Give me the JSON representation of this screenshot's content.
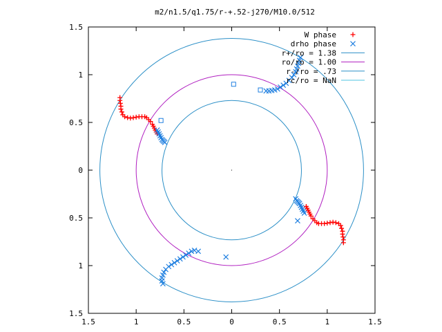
{
  "chart_data": {
    "type": "scatter",
    "title": "m2/n1.5/q1.75/r-+.52-j270/M10.0/512",
    "xlim": [
      -1.5,
      1.5
    ],
    "ylim": [
      -1.5,
      1.5
    ],
    "x_ticks": [
      {
        "v": -1.5,
        "label": "1.5"
      },
      {
        "v": -1,
        "label": "1"
      },
      {
        "v": -0.5,
        "label": "0.5"
      },
      {
        "v": 0,
        "label": "0"
      },
      {
        "v": 0.5,
        "label": "0.5"
      },
      {
        "v": 1,
        "label": "1"
      },
      {
        "v": 1.5,
        "label": "1.5"
      }
    ],
    "y_ticks": [
      {
        "v": 1.5,
        "label": "1.5"
      },
      {
        "v": 1,
        "label": "1"
      },
      {
        "v": 0.5,
        "label": "0.5"
      },
      {
        "v": 0,
        "label": "0"
      },
      {
        "v": -0.5,
        "label": "0.5"
      },
      {
        "v": -1,
        "label": "1"
      },
      {
        "v": -1.5,
        "label": "1.5"
      }
    ],
    "grid": false,
    "legend_position": "top-right",
    "circles": [
      {
        "name": "r+/ro = 1.38",
        "radius": 1.38,
        "color": "#2b8fc7"
      },
      {
        "name": "ro/ro = 1.00",
        "radius": 1.0,
        "color": "#b01ec0"
      },
      {
        "name": "r-/ro = .73",
        "radius": 0.73,
        "color": "#2b8fc7"
      },
      {
        "name": "rc/ro = NaN",
        "radius": null,
        "color": "#4fc6e2"
      }
    ],
    "series": [
      {
        "name": "W phase",
        "marker": "plus",
        "color": "#ff0000",
        "points": [
          [
            -1.17,
            0.76
          ],
          [
            -1.17,
            0.73
          ],
          [
            -1.165,
            0.7
          ],
          [
            -1.16,
            0.67
          ],
          [
            -1.16,
            0.64
          ],
          [
            -1.15,
            0.61
          ],
          [
            -1.14,
            0.58
          ],
          [
            -1.12,
            0.56
          ],
          [
            -1.09,
            0.55
          ],
          [
            -1.06,
            0.545
          ],
          [
            -1.03,
            0.55
          ],
          [
            -1.0,
            0.555
          ],
          [
            -0.97,
            0.56
          ],
          [
            -0.94,
            0.56
          ],
          [
            -0.91,
            0.56
          ],
          [
            -0.89,
            0.55
          ],
          [
            -0.87,
            0.53
          ],
          [
            -0.85,
            0.51
          ],
          [
            -0.83,
            0.48
          ],
          [
            -0.82,
            0.46
          ],
          [
            -0.81,
            0.44
          ],
          [
            -0.8,
            0.42
          ],
          [
            -0.79,
            0.4
          ],
          [
            -0.78,
            0.38
          ],
          [
            1.17,
            -0.76
          ],
          [
            1.17,
            -0.73
          ],
          [
            1.165,
            -0.7
          ],
          [
            1.16,
            -0.67
          ],
          [
            1.16,
            -0.64
          ],
          [
            1.15,
            -0.61
          ],
          [
            1.14,
            -0.58
          ],
          [
            1.12,
            -0.56
          ],
          [
            1.09,
            -0.55
          ],
          [
            1.06,
            -0.545
          ],
          [
            1.03,
            -0.55
          ],
          [
            1.0,
            -0.555
          ],
          [
            0.97,
            -0.56
          ],
          [
            0.94,
            -0.56
          ],
          [
            0.91,
            -0.56
          ],
          [
            0.89,
            -0.55
          ],
          [
            0.87,
            -0.53
          ],
          [
            0.85,
            -0.51
          ],
          [
            0.83,
            -0.48
          ],
          [
            0.82,
            -0.46
          ],
          [
            0.81,
            -0.44
          ],
          [
            0.8,
            -0.42
          ],
          [
            0.79,
            -0.4
          ],
          [
            0.78,
            -0.38
          ]
        ]
      },
      {
        "name": "drho phase",
        "marker": "x",
        "color": "#1f7fe0",
        "points": [
          [
            -0.78,
            0.42
          ],
          [
            -0.77,
            0.4
          ],
          [
            -0.76,
            0.38
          ],
          [
            -0.75,
            0.36
          ],
          [
            -0.74,
            0.34
          ],
          [
            -0.73,
            0.32
          ],
          [
            -0.72,
            0.31
          ],
          [
            -0.71,
            0.3
          ],
          [
            -0.7,
            0.29
          ],
          [
            0.36,
            0.83
          ],
          [
            0.39,
            0.83
          ],
          [
            0.42,
            0.835
          ],
          [
            0.45,
            0.84
          ],
          [
            0.48,
            0.85
          ],
          [
            0.51,
            0.87
          ],
          [
            0.54,
            0.89
          ],
          [
            0.57,
            0.91
          ],
          [
            0.6,
            0.94
          ],
          [
            0.63,
            0.97
          ],
          [
            0.65,
            1.0
          ],
          [
            0.67,
            1.03
          ],
          [
            0.68,
            1.06
          ],
          [
            0.69,
            1.09
          ],
          [
            0.7,
            1.12
          ],
          [
            0.71,
            1.15
          ],
          [
            0.72,
            1.18
          ],
          [
            0.67,
            -0.3
          ],
          [
            0.68,
            -0.32
          ],
          [
            0.69,
            -0.33
          ],
          [
            0.7,
            -0.34
          ],
          [
            0.71,
            -0.35
          ],
          [
            0.72,
            -0.37
          ],
          [
            0.73,
            -0.39
          ],
          [
            0.74,
            -0.41
          ],
          [
            0.75,
            -0.43
          ],
          [
            0.76,
            -0.45
          ],
          [
            0.69,
            -0.53
          ],
          [
            -0.72,
            -1.19
          ],
          [
            -0.73,
            -1.16
          ],
          [
            -0.73,
            -1.13
          ],
          [
            -0.72,
            -1.1
          ],
          [
            -0.71,
            -1.07
          ],
          [
            -0.69,
            -1.04
          ],
          [
            -0.66,
            -1.01
          ],
          [
            -0.63,
            -0.99
          ],
          [
            -0.6,
            -0.97
          ],
          [
            -0.57,
            -0.95
          ],
          [
            -0.54,
            -0.93
          ],
          [
            -0.51,
            -0.91
          ],
          [
            -0.48,
            -0.89
          ],
          [
            -0.45,
            -0.87
          ],
          [
            -0.42,
            -0.85
          ],
          [
            -0.39,
            -0.84
          ],
          [
            -0.35,
            -0.85
          ],
          [
            -0.06,
            -0.91
          ]
        ]
      }
    ],
    "extra_markers": [
      {
        "marker": "square",
        "color": "#1f7fe0",
        "points": [
          [
            0.02,
            0.9
          ],
          [
            -0.74,
            0.52
          ],
          [
            0.3,
            0.84
          ]
        ]
      }
    ],
    "center_point": [
      0,
      0
    ]
  }
}
